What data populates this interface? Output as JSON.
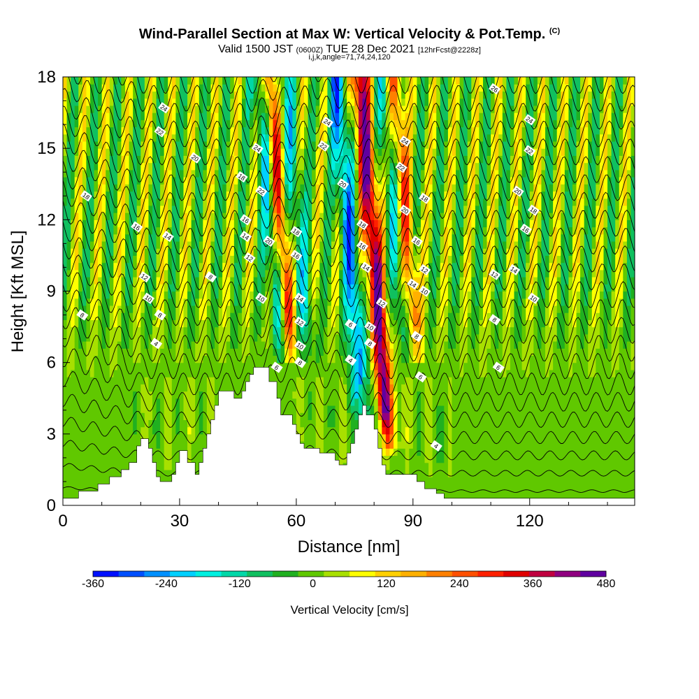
{
  "header": {
    "title_main": "Wind-Parallel Section at Max W: Vertical Velocity & Pot.Temp.",
    "title_mark": "(C)",
    "valid_prefix": "Valid 1500 JST",
    "valid_utc": "(0600Z)",
    "valid_date": "TUE 28 Dec 2021",
    "forecast": "[12hrFcst@2228z]",
    "indices": "i,j,k,angle=71,74,24,120"
  },
  "chart_data": {
    "type": "heatmap",
    "title": "Wind-Parallel Section at Max W: Vertical Velocity & Pot.Temp.",
    "xlabel": "Distance [nm]",
    "ylabel": "Height [Kft MSL]",
    "xlim": [
      0,
      147
    ],
    "ylim": [
      0,
      18
    ],
    "x_ticks": [
      {
        "value": 0,
        "label": "0"
      },
      {
        "value": 30,
        "label": "30"
      },
      {
        "value": 60,
        "label": "60"
      },
      {
        "value": 90,
        "label": "90"
      },
      {
        "value": 120,
        "label": "120"
      }
    ],
    "y_ticks": [
      {
        "value": 0,
        "label": "0"
      },
      {
        "value": 3,
        "label": "3"
      },
      {
        "value": 6,
        "label": "6"
      },
      {
        "value": 9,
        "label": "9"
      },
      {
        "value": 12,
        "label": "12"
      },
      {
        "value": 15,
        "label": "15"
      },
      {
        "value": 18,
        "label": "18"
      }
    ],
    "terrain": [
      [
        0,
        0.3
      ],
      [
        4,
        0.3
      ],
      [
        4,
        0.6
      ],
      [
        9,
        0.6
      ],
      [
        9,
        0.9
      ],
      [
        12,
        0.9
      ],
      [
        12,
        1.2
      ],
      [
        15,
        1.2
      ],
      [
        15,
        1.5
      ],
      [
        17,
        1.5
      ],
      [
        17,
        1.8
      ],
      [
        19,
        1.8
      ],
      [
        19,
        2.5
      ],
      [
        20,
        2.5
      ],
      [
        20,
        2.8
      ],
      [
        22,
        2.8
      ],
      [
        22,
        2.4
      ],
      [
        23,
        2.4
      ],
      [
        23,
        1.8
      ],
      [
        24,
        1.8
      ],
      [
        24,
        1.2
      ],
      [
        25,
        1.2
      ],
      [
        25,
        1.0
      ],
      [
        28,
        1.0
      ],
      [
        28,
        1.3
      ],
      [
        29,
        1.3
      ],
      [
        29,
        1.8
      ],
      [
        30,
        1.8
      ],
      [
        30,
        2.3
      ],
      [
        32,
        2.3
      ],
      [
        32,
        1.8
      ],
      [
        34,
        1.8
      ],
      [
        34,
        1.3
      ],
      [
        35,
        1.3
      ],
      [
        35,
        1.8
      ],
      [
        36,
        1.8
      ],
      [
        36,
        2.4
      ],
      [
        37,
        2.4
      ],
      [
        37,
        3.0
      ],
      [
        38,
        3.0
      ],
      [
        38,
        3.6
      ],
      [
        39,
        3.6
      ],
      [
        39,
        4.2
      ],
      [
        40,
        4.2
      ],
      [
        40,
        4.8
      ],
      [
        44,
        4.8
      ],
      [
        44,
        4.5
      ],
      [
        46,
        4.5
      ],
      [
        46,
        4.8
      ],
      [
        47,
        4.8
      ],
      [
        47,
        5.2
      ],
      [
        48,
        5.2
      ],
      [
        48,
        5.5
      ],
      [
        49,
        5.5
      ],
      [
        49,
        5.8
      ],
      [
        53,
        5.8
      ],
      [
        53,
        5.2
      ],
      [
        55,
        5.2
      ],
      [
        55,
        4.5
      ],
      [
        56,
        4.5
      ],
      [
        56,
        3.8
      ],
      [
        59,
        3.8
      ],
      [
        59,
        3.4
      ],
      [
        60,
        3.4
      ],
      [
        60,
        3.0
      ],
      [
        61,
        3.0
      ],
      [
        61,
        2.6
      ],
      [
        62,
        2.6
      ],
      [
        62,
        2.4
      ],
      [
        66,
        2.4
      ],
      [
        66,
        2.2
      ],
      [
        70,
        2.2
      ],
      [
        70,
        1.9
      ],
      [
        71,
        1.9
      ],
      [
        71,
        1.7
      ],
      [
        73,
        1.7
      ],
      [
        73,
        2.2
      ],
      [
        74,
        2.2
      ],
      [
        74,
        2.6
      ],
      [
        75,
        2.6
      ],
      [
        75,
        3.2
      ],
      [
        76,
        3.2
      ],
      [
        76,
        3.8
      ],
      [
        77,
        3.8
      ],
      [
        77,
        4.2
      ],
      [
        78,
        4.2
      ],
      [
        78,
        3.8
      ],
      [
        80,
        3.8
      ],
      [
        80,
        3.2
      ],
      [
        81,
        3.2
      ],
      [
        81,
        2.4
      ],
      [
        82,
        2.4
      ],
      [
        82,
        1.7
      ],
      [
        83,
        1.7
      ],
      [
        83,
        1.3
      ],
      [
        91,
        1.3
      ],
      [
        91,
        1.0
      ],
      [
        93,
        1.0
      ],
      [
        93,
        0.7
      ],
      [
        96,
        0.7
      ],
      [
        96,
        0.5
      ],
      [
        98,
        0.5
      ],
      [
        98,
        0.3
      ],
      [
        147,
        0.3
      ]
    ],
    "theta_contour_labels": [
      {
        "x": 26,
        "y": 16.7,
        "label": "24"
      },
      {
        "x": 25,
        "y": 15.7,
        "label": "22"
      },
      {
        "x": 34,
        "y": 14.6,
        "label": "20"
      },
      {
        "x": 6,
        "y": 13.0,
        "label": "18"
      },
      {
        "x": 46,
        "y": 13.8,
        "label": "18"
      },
      {
        "x": 19,
        "y": 11.7,
        "label": "16"
      },
      {
        "x": 27,
        "y": 11.3,
        "label": "14"
      },
      {
        "x": 5,
        "y": 8.0,
        "label": "8"
      },
      {
        "x": 21,
        "y": 9.6,
        "label": "12"
      },
      {
        "x": 22,
        "y": 8.7,
        "label": "10"
      },
      {
        "x": 25,
        "y": 8.0,
        "label": "8"
      },
      {
        "x": 24,
        "y": 6.8,
        "label": "4"
      },
      {
        "x": 38,
        "y": 9.6,
        "label": "8"
      },
      {
        "x": 50,
        "y": 15.0,
        "label": "24"
      },
      {
        "x": 51,
        "y": 13.2,
        "label": "22"
      },
      {
        "x": 47,
        "y": 12.0,
        "label": "16"
      },
      {
        "x": 47,
        "y": 11.3,
        "label": "14"
      },
      {
        "x": 48,
        "y": 10.4,
        "label": "12"
      },
      {
        "x": 53,
        "y": 11.1,
        "label": "20"
      },
      {
        "x": 51,
        "y": 8.7,
        "label": "10"
      },
      {
        "x": 55,
        "y": 5.8,
        "label": "6"
      },
      {
        "x": 60,
        "y": 11.5,
        "label": "18"
      },
      {
        "x": 60,
        "y": 10.5,
        "label": "16"
      },
      {
        "x": 61,
        "y": 8.7,
        "label": "14"
      },
      {
        "x": 61,
        "y": 7.7,
        "label": "12"
      },
      {
        "x": 61,
        "y": 6.7,
        "label": "10"
      },
      {
        "x": 61,
        "y": 6.0,
        "label": "8"
      },
      {
        "x": 68,
        "y": 16.1,
        "label": "24"
      },
      {
        "x": 67,
        "y": 15.1,
        "label": "22"
      },
      {
        "x": 72,
        "y": 13.5,
        "label": "20"
      },
      {
        "x": 77,
        "y": 11.8,
        "label": "18"
      },
      {
        "x": 77,
        "y": 10.9,
        "label": "16"
      },
      {
        "x": 78,
        "y": 10.0,
        "label": "14"
      },
      {
        "x": 82,
        "y": 8.5,
        "label": "12"
      },
      {
        "x": 79,
        "y": 7.5,
        "label": "10"
      },
      {
        "x": 79,
        "y": 6.8,
        "label": "8"
      },
      {
        "x": 74,
        "y": 7.6,
        "label": "6"
      },
      {
        "x": 74,
        "y": 6.1,
        "label": "4"
      },
      {
        "x": 88,
        "y": 15.3,
        "label": "24"
      },
      {
        "x": 87,
        "y": 14.2,
        "label": "22"
      },
      {
        "x": 88,
        "y": 12.4,
        "label": "20"
      },
      {
        "x": 93,
        "y": 12.9,
        "label": "18"
      },
      {
        "x": 91,
        "y": 11.1,
        "label": "16"
      },
      {
        "x": 93,
        "y": 9.9,
        "label": "12"
      },
      {
        "x": 90,
        "y": 9.3,
        "label": "14"
      },
      {
        "x": 93,
        "y": 9.0,
        "label": "10"
      },
      {
        "x": 91,
        "y": 7.1,
        "label": "8"
      },
      {
        "x": 92,
        "y": 5.4,
        "label": "6"
      },
      {
        "x": 96,
        "y": 2.5,
        "label": "4"
      },
      {
        "x": 111,
        "y": 17.5,
        "label": "26"
      },
      {
        "x": 120,
        "y": 16.2,
        "label": "24"
      },
      {
        "x": 120,
        "y": 14.9,
        "label": "22"
      },
      {
        "x": 117,
        "y": 13.2,
        "label": "20"
      },
      {
        "x": 121,
        "y": 12.4,
        "label": "18"
      },
      {
        "x": 119,
        "y": 11.6,
        "label": "16"
      },
      {
        "x": 116,
        "y": 9.9,
        "label": "14"
      },
      {
        "x": 111,
        "y": 9.7,
        "label": "12"
      },
      {
        "x": 121,
        "y": 8.7,
        "label": "10"
      },
      {
        "x": 111,
        "y": 7.8,
        "label": "8"
      },
      {
        "x": 112,
        "y": 5.8,
        "label": "6"
      }
    ]
  },
  "colorbar": {
    "title": "Vertical Velocity [cm/s]",
    "ticks": [
      {
        "value": -360,
        "label": "-360"
      },
      {
        "value": -240,
        "label": "-240"
      },
      {
        "value": -120,
        "label": "-120"
      },
      {
        "value": 0,
        "label": "0"
      },
      {
        "value": 120,
        "label": "120"
      },
      {
        "value": 240,
        "label": "240"
      },
      {
        "value": 360,
        "label": "360"
      },
      {
        "value": 480,
        "label": "480"
      }
    ],
    "colors": [
      "#0010ff",
      "#0050ff",
      "#0090ff",
      "#00d0ff",
      "#00f0e0",
      "#00d8a8",
      "#10c060",
      "#20b020",
      "#60c800",
      "#a8e000",
      "#ffff00",
      "#ffd000",
      "#ffb000",
      "#ff8000",
      "#ff5000",
      "#ff2000",
      "#e00000",
      "#c00040",
      "#900080",
      "#6000a0"
    ]
  }
}
